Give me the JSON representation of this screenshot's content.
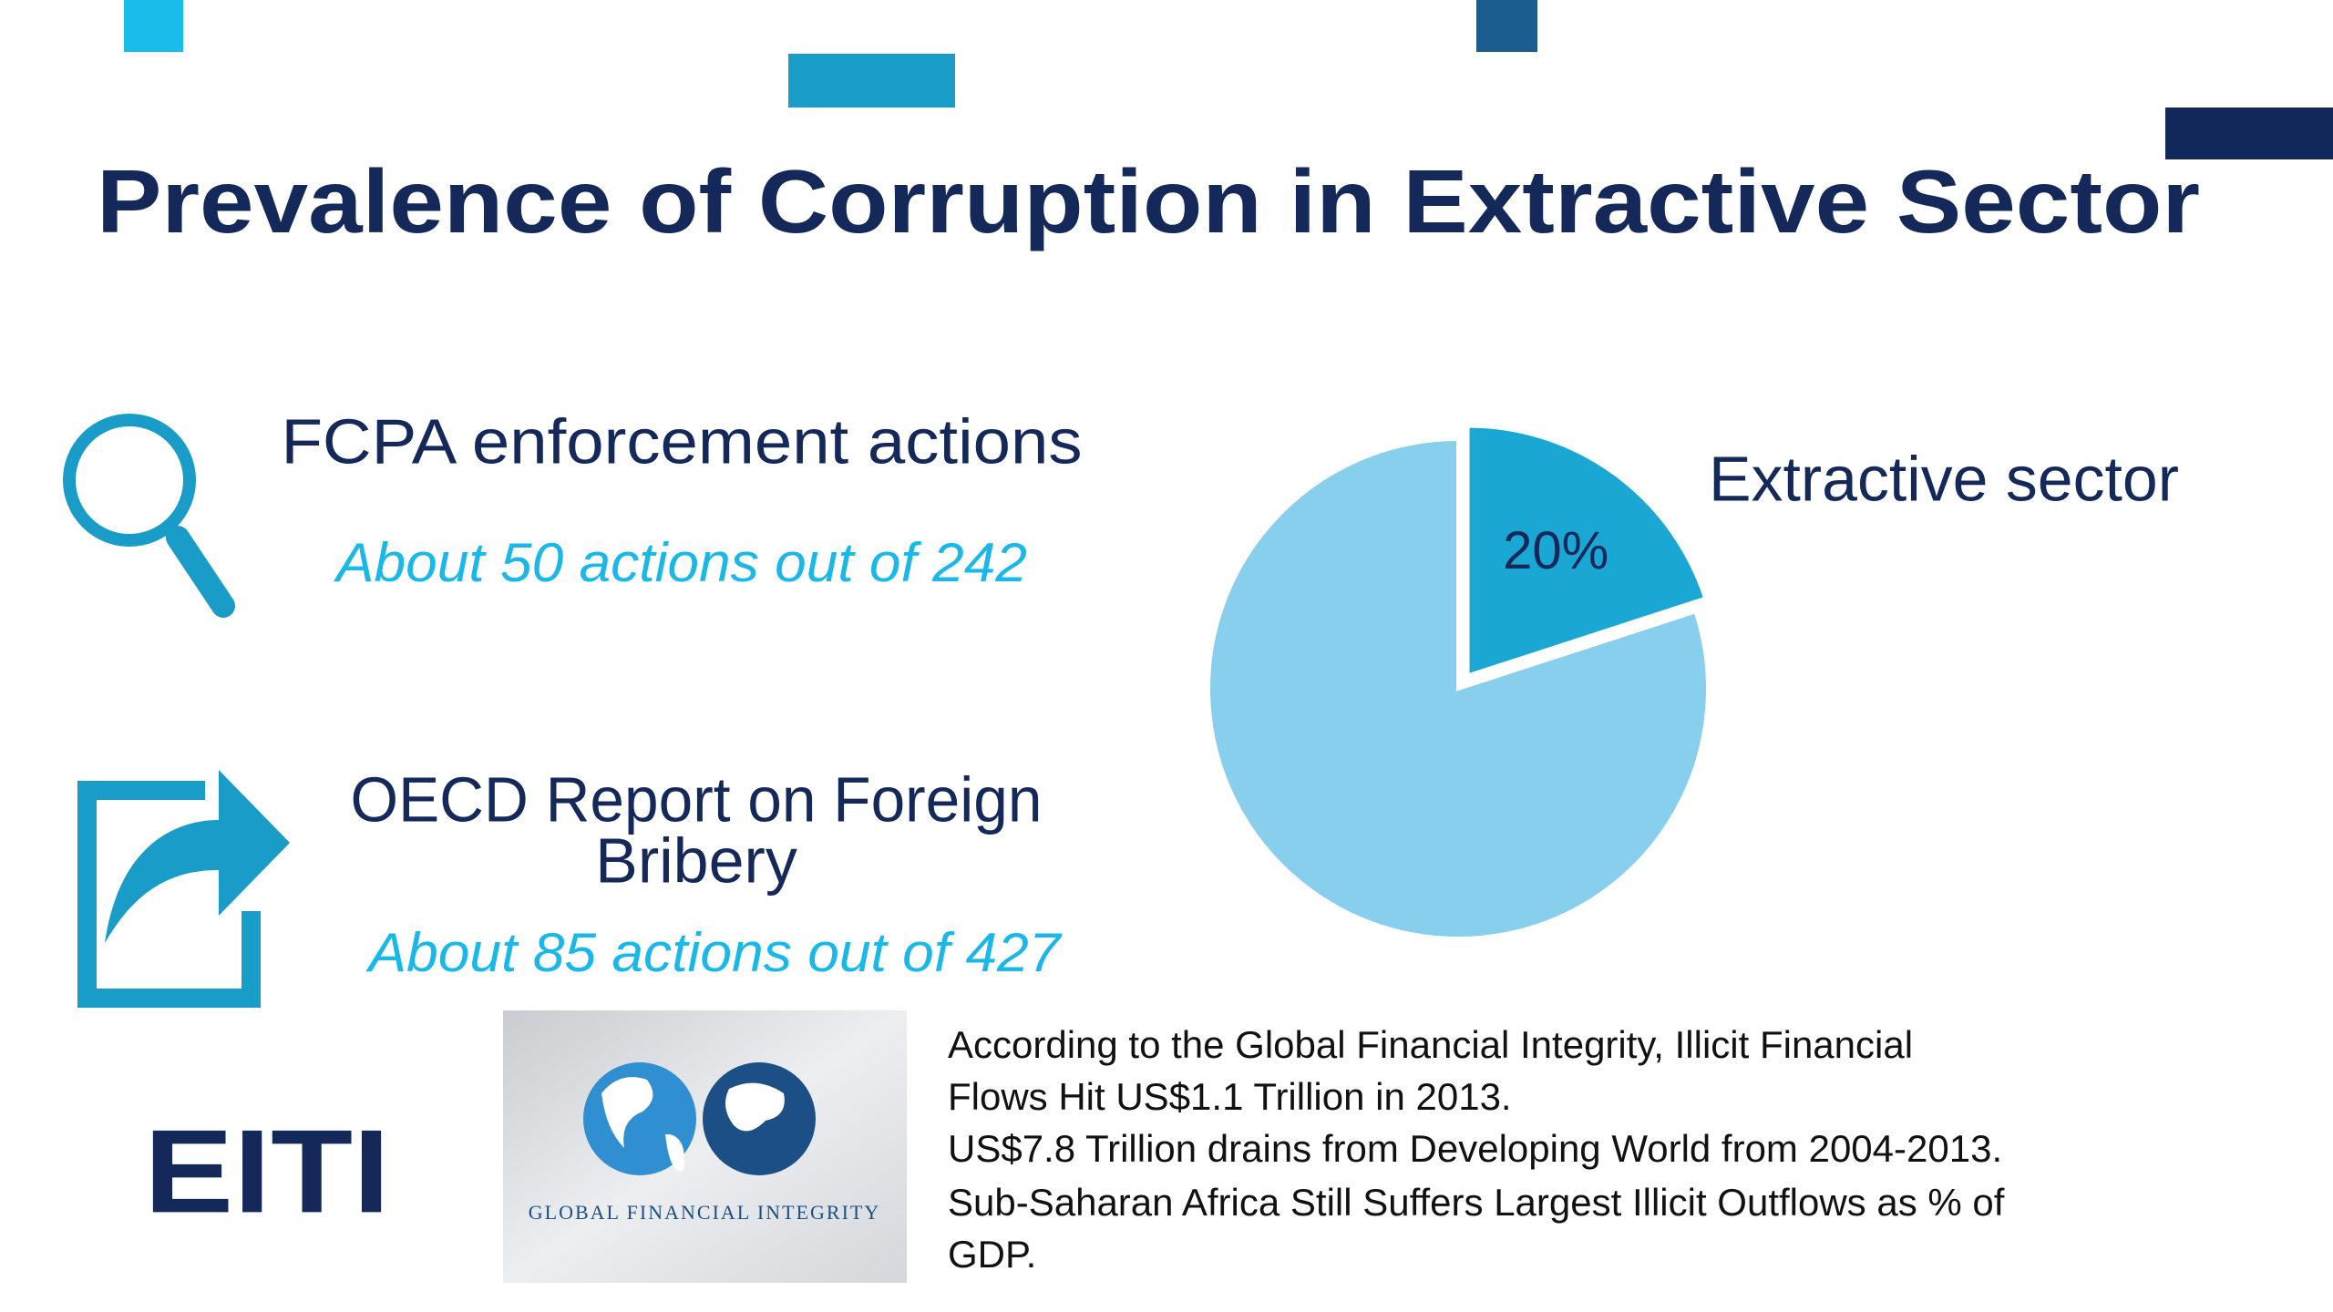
{
  "title": "Prevalence of Corruption in Extractive Sector",
  "items": [
    {
      "heading": [
        "FCPA enforcement actions"
      ],
      "detail": "About 50 actions out of 242"
    },
    {
      "heading": [
        "OECD Report on Foreign",
        "Bribery"
      ],
      "detail": "About 85 actions out of 427"
    }
  ],
  "chart_data": {
    "type": "pie",
    "categories": [
      "Extractive sector",
      null
    ],
    "values": [
      20,
      80
    ],
    "value_labels": [
      "20%",
      null
    ],
    "colors": [
      "#1aa7d4",
      "#88cfee"
    ],
    "explode": [
      true,
      false
    ]
  },
  "logos": {
    "eiti": "EITI",
    "gfi": "Global Financial Integrity"
  },
  "note": [
    "According to the Global Financial Integrity, Illicit Financial",
    "Flows Hit US$1.1 Trillion in 2013.",
    "US$7.8 Trillion drains from Developing World from 2004-2013.",
    "Sub-Saharan Africa Still Suffers Largest Illicit Outflows as % of",
    "GDP."
  ]
}
